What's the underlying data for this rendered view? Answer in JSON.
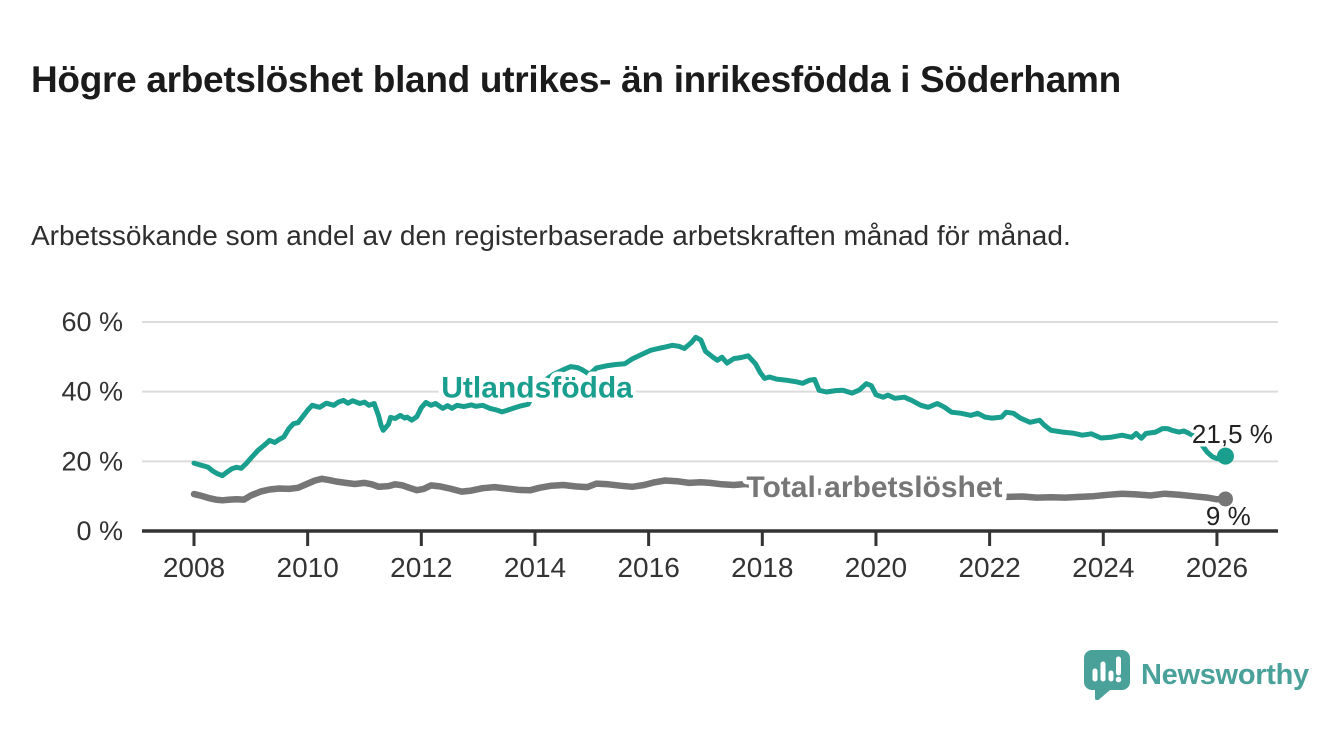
{
  "title": "Högre arbetslöshet bland utrikes- än inrikesfödda i Söderhamn",
  "subtitle": "Arbetssökande som andel av den registerbaserade arbetskraften månad för månad.",
  "colors": {
    "series_foreign_born": "#1a9e8e",
    "series_total": "#767676",
    "axis": "#333333",
    "grid": "#dcdcdc",
    "tick_text": "#333333",
    "value_text": "#222222",
    "logo": "#4aa19a"
  },
  "logo": {
    "text": "Newsworthy",
    "icon": "speech-bubble-bar-chart-icon"
  },
  "chart_data": {
    "type": "line",
    "unit": "%",
    "title": "",
    "xlabel": "",
    "ylabel": "",
    "grid": "horizontal",
    "legend_position": "inline-labels",
    "xlim": [
      2007.1,
      2027.1
    ],
    "ylim": [
      0,
      60
    ],
    "x_ticks": [
      2008,
      2010,
      2012,
      2014,
      2016,
      2018,
      2020,
      2022,
      2024,
      2026
    ],
    "y_ticks": [
      {
        "value": 0,
        "label": "0 %"
      },
      {
        "value": 20,
        "label": "20 %"
      },
      {
        "value": 40,
        "label": "40 %"
      },
      {
        "value": 60,
        "label": "60 %"
      }
    ],
    "series": [
      {
        "name": "Utlandsfödda",
        "color": "#1a9e8e",
        "end_value": 21.5,
        "end_label": "21,5 %",
        "points": [
          [
            2008.0,
            19.5
          ],
          [
            2008.08,
            19.1
          ],
          [
            2008.17,
            18.7
          ],
          [
            2008.25,
            18.3
          ],
          [
            2008.33,
            17.2
          ],
          [
            2008.42,
            16.4
          ],
          [
            2008.5,
            15.9
          ],
          [
            2008.58,
            16.9
          ],
          [
            2008.67,
            17.9
          ],
          [
            2008.75,
            18.3
          ],
          [
            2008.83,
            18.0
          ],
          [
            2008.92,
            19.4
          ],
          [
            2009.0,
            20.9
          ],
          [
            2009.13,
            23.2
          ],
          [
            2009.25,
            24.8
          ],
          [
            2009.33,
            26.0
          ],
          [
            2009.42,
            25.4
          ],
          [
            2009.5,
            26.3
          ],
          [
            2009.58,
            27.0
          ],
          [
            2009.67,
            29.4
          ],
          [
            2009.75,
            30.8
          ],
          [
            2009.83,
            31.1
          ],
          [
            2009.92,
            33.0
          ],
          [
            2010.0,
            34.7
          ],
          [
            2010.08,
            36.1
          ],
          [
            2010.21,
            35.5
          ],
          [
            2010.33,
            36.7
          ],
          [
            2010.46,
            36.1
          ],
          [
            2010.54,
            37.0
          ],
          [
            2010.63,
            37.5
          ],
          [
            2010.71,
            36.7
          ],
          [
            2010.79,
            37.4
          ],
          [
            2010.92,
            36.6
          ],
          [
            2011.0,
            37.0
          ],
          [
            2011.08,
            36.1
          ],
          [
            2011.17,
            36.6
          ],
          [
            2011.25,
            33.0
          ],
          [
            2011.29,
            30.4
          ],
          [
            2011.33,
            28.9
          ],
          [
            2011.42,
            30.6
          ],
          [
            2011.46,
            32.6
          ],
          [
            2011.54,
            32.3
          ],
          [
            2011.63,
            33.2
          ],
          [
            2011.71,
            32.4
          ],
          [
            2011.75,
            32.7
          ],
          [
            2011.83,
            31.8
          ],
          [
            2011.92,
            32.8
          ],
          [
            2012.0,
            35.4
          ],
          [
            2012.08,
            36.9
          ],
          [
            2012.17,
            36.1
          ],
          [
            2012.25,
            36.6
          ],
          [
            2012.38,
            35.2
          ],
          [
            2012.46,
            36.0
          ],
          [
            2012.54,
            35.2
          ],
          [
            2012.63,
            36.1
          ],
          [
            2012.75,
            35.7
          ],
          [
            2012.88,
            36.2
          ],
          [
            2012.96,
            35.8
          ],
          [
            2013.08,
            36.1
          ],
          [
            2013.21,
            35.2
          ],
          [
            2013.33,
            34.7
          ],
          [
            2013.42,
            34.2
          ],
          [
            2013.5,
            34.6
          ],
          [
            2013.63,
            35.3
          ],
          [
            2013.75,
            35.9
          ],
          [
            2013.88,
            36.4
          ],
          [
            2014.0,
            40.5
          ],
          [
            2014.17,
            43.2
          ],
          [
            2014.33,
            45.0
          ],
          [
            2014.5,
            46.3
          ],
          [
            2014.63,
            47.2
          ],
          [
            2014.75,
            46.9
          ],
          [
            2014.83,
            46.3
          ],
          [
            2014.96,
            45.0
          ],
          [
            2015.08,
            46.8
          ],
          [
            2015.25,
            47.4
          ],
          [
            2015.42,
            47.8
          ],
          [
            2015.58,
            48.0
          ],
          [
            2015.71,
            49.4
          ],
          [
            2015.88,
            50.7
          ],
          [
            2016.04,
            51.9
          ],
          [
            2016.17,
            52.4
          ],
          [
            2016.29,
            52.8
          ],
          [
            2016.42,
            53.3
          ],
          [
            2016.54,
            53.0
          ],
          [
            2016.63,
            52.4
          ],
          [
            2016.75,
            54.1
          ],
          [
            2016.83,
            55.6
          ],
          [
            2016.92,
            54.8
          ],
          [
            2017.0,
            51.6
          ],
          [
            2017.13,
            49.9
          ],
          [
            2017.21,
            49.0
          ],
          [
            2017.29,
            49.9
          ],
          [
            2017.38,
            48.2
          ],
          [
            2017.5,
            49.5
          ],
          [
            2017.63,
            49.8
          ],
          [
            2017.75,
            50.3
          ],
          [
            2017.88,
            48.0
          ],
          [
            2017.96,
            45.6
          ],
          [
            2018.04,
            43.8
          ],
          [
            2018.13,
            44.2
          ],
          [
            2018.25,
            43.6
          ],
          [
            2018.42,
            43.3
          ],
          [
            2018.58,
            42.9
          ],
          [
            2018.71,
            42.4
          ],
          [
            2018.83,
            43.3
          ],
          [
            2018.92,
            43.5
          ],
          [
            2019.0,
            40.4
          ],
          [
            2019.13,
            39.9
          ],
          [
            2019.29,
            40.3
          ],
          [
            2019.42,
            40.4
          ],
          [
            2019.58,
            39.6
          ],
          [
            2019.71,
            40.5
          ],
          [
            2019.83,
            42.3
          ],
          [
            2019.92,
            41.7
          ],
          [
            2020.0,
            39.1
          ],
          [
            2020.13,
            38.4
          ],
          [
            2020.21,
            39.0
          ],
          [
            2020.33,
            38.1
          ],
          [
            2020.5,
            38.4
          ],
          [
            2020.63,
            37.5
          ],
          [
            2020.79,
            36.1
          ],
          [
            2020.92,
            35.5
          ],
          [
            2021.08,
            36.6
          ],
          [
            2021.21,
            35.5
          ],
          [
            2021.33,
            34.1
          ],
          [
            2021.5,
            33.8
          ],
          [
            2021.67,
            33.2
          ],
          [
            2021.79,
            33.8
          ],
          [
            2021.92,
            32.7
          ],
          [
            2022.04,
            32.4
          ],
          [
            2022.21,
            32.7
          ],
          [
            2022.29,
            34.1
          ],
          [
            2022.42,
            33.8
          ],
          [
            2022.54,
            32.4
          ],
          [
            2022.71,
            31.2
          ],
          [
            2022.88,
            31.8
          ],
          [
            2022.96,
            30.4
          ],
          [
            2023.08,
            28.9
          ],
          [
            2023.29,
            28.4
          ],
          [
            2023.46,
            28.1
          ],
          [
            2023.63,
            27.5
          ],
          [
            2023.79,
            27.9
          ],
          [
            2023.96,
            26.7
          ],
          [
            2024.13,
            26.9
          ],
          [
            2024.33,
            27.5
          ],
          [
            2024.5,
            26.9
          ],
          [
            2024.58,
            28.0
          ],
          [
            2024.67,
            26.6
          ],
          [
            2024.75,
            28.0
          ],
          [
            2024.92,
            28.4
          ],
          [
            2025.04,
            29.4
          ],
          [
            2025.13,
            29.4
          ],
          [
            2025.21,
            28.9
          ],
          [
            2025.33,
            28.4
          ],
          [
            2025.42,
            28.7
          ],
          [
            2025.5,
            28.1
          ],
          [
            2025.58,
            27.4
          ],
          [
            2025.67,
            26.2
          ],
          [
            2025.75,
            24.4
          ],
          [
            2025.83,
            22.6
          ],
          [
            2025.92,
            21.3
          ],
          [
            2026.0,
            20.8
          ],
          [
            2026.08,
            20.6
          ],
          [
            2026.15,
            21.5
          ]
        ]
      },
      {
        "name": "Total arbetslöshet",
        "color": "#767676",
        "end_value": 9,
        "end_label": "9 %",
        "points": [
          [
            2008.0,
            10.6
          ],
          [
            2008.13,
            10.1
          ],
          [
            2008.25,
            9.5
          ],
          [
            2008.38,
            9.0
          ],
          [
            2008.5,
            8.8
          ],
          [
            2008.63,
            9.0
          ],
          [
            2008.75,
            9.1
          ],
          [
            2008.88,
            9.0
          ],
          [
            2009.0,
            10.2
          ],
          [
            2009.17,
            11.3
          ],
          [
            2009.33,
            11.9
          ],
          [
            2009.5,
            12.2
          ],
          [
            2009.67,
            12.1
          ],
          [
            2009.83,
            12.4
          ],
          [
            2010.0,
            13.6
          ],
          [
            2010.13,
            14.5
          ],
          [
            2010.25,
            15.0
          ],
          [
            2010.38,
            14.6
          ],
          [
            2010.5,
            14.2
          ],
          [
            2010.67,
            13.8
          ],
          [
            2010.83,
            13.5
          ],
          [
            2011.0,
            13.8
          ],
          [
            2011.13,
            13.4
          ],
          [
            2011.25,
            12.7
          ],
          [
            2011.42,
            12.9
          ],
          [
            2011.54,
            13.4
          ],
          [
            2011.67,
            13.1
          ],
          [
            2011.79,
            12.4
          ],
          [
            2011.92,
            11.7
          ],
          [
            2012.04,
            12.1
          ],
          [
            2012.17,
            13.1
          ],
          [
            2012.33,
            12.8
          ],
          [
            2012.5,
            12.2
          ],
          [
            2012.71,
            11.3
          ],
          [
            2012.88,
            11.6
          ],
          [
            2013.08,
            12.3
          ],
          [
            2013.29,
            12.6
          ],
          [
            2013.5,
            12.2
          ],
          [
            2013.71,
            11.8
          ],
          [
            2013.92,
            11.7
          ],
          [
            2014.08,
            12.4
          ],
          [
            2014.29,
            13.0
          ],
          [
            2014.5,
            13.2
          ],
          [
            2014.71,
            12.8
          ],
          [
            2014.92,
            12.6
          ],
          [
            2015.08,
            13.6
          ],
          [
            2015.29,
            13.4
          ],
          [
            2015.5,
            13.0
          ],
          [
            2015.71,
            12.7
          ],
          [
            2015.92,
            13.2
          ],
          [
            2016.08,
            13.9
          ],
          [
            2016.29,
            14.5
          ],
          [
            2016.5,
            14.3
          ],
          [
            2016.71,
            13.8
          ],
          [
            2016.92,
            14.0
          ],
          [
            2017.08,
            13.8
          ],
          [
            2017.29,
            13.4
          ],
          [
            2017.5,
            13.2
          ],
          [
            2017.71,
            13.5
          ],
          [
            2017.92,
            12.8
          ],
          [
            2018.08,
            12.3
          ],
          [
            2018.33,
            12.0
          ],
          [
            2018.58,
            11.8
          ],
          [
            2018.83,
            11.5
          ],
          [
            2019.08,
            11.2
          ],
          [
            2019.33,
            11.0
          ],
          [
            2019.58,
            10.8
          ],
          [
            2019.83,
            11.1
          ],
          [
            2020.08,
            11.7
          ],
          [
            2020.33,
            12.0
          ],
          [
            2020.58,
            11.9
          ],
          [
            2020.83,
            11.5
          ],
          [
            2021.08,
            11.2
          ],
          [
            2021.33,
            10.8
          ],
          [
            2021.58,
            10.5
          ],
          [
            2021.83,
            10.2
          ],
          [
            2022.08,
            10.0
          ],
          [
            2022.33,
            9.8
          ],
          [
            2022.58,
            9.9
          ],
          [
            2022.83,
            9.6
          ],
          [
            2023.08,
            9.7
          ],
          [
            2023.33,
            9.6
          ],
          [
            2023.58,
            9.8
          ],
          [
            2023.83,
            10.0
          ],
          [
            2024.08,
            10.4
          ],
          [
            2024.33,
            10.7
          ],
          [
            2024.58,
            10.5
          ],
          [
            2024.83,
            10.2
          ],
          [
            2025.08,
            10.7
          ],
          [
            2025.33,
            10.4
          ],
          [
            2025.58,
            10.0
          ],
          [
            2025.83,
            9.6
          ],
          [
            2026.0,
            9.1
          ],
          [
            2026.15,
            9.2
          ]
        ]
      }
    ],
    "annotations": [
      {
        "kind": "series",
        "text": "Utlandsfödda",
        "x": 2012.35,
        "y": 41.2,
        "color": "#1a9e8e",
        "anchor": "start"
      },
      {
        "kind": "series",
        "text": "Total arbetslöshet",
        "x": 2017.72,
        "y": 12.6,
        "color": "#767676",
        "anchor": "start"
      },
      {
        "kind": "value",
        "text": "21,5 %",
        "x": 2025.56,
        "y": 27.9,
        "color": "#222222",
        "anchor": "start"
      },
      {
        "kind": "value",
        "text": "9 %",
        "x": 2026.2,
        "y": 4.3,
        "color": "#222222",
        "anchor": "middle"
      }
    ]
  }
}
